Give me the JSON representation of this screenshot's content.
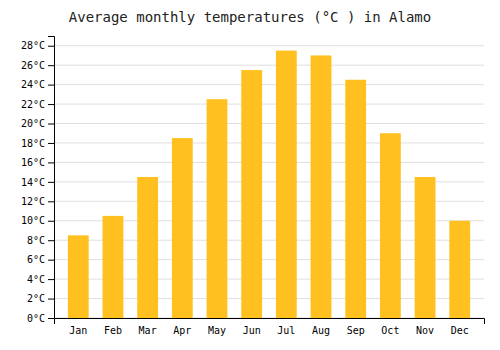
{
  "chart_data": {
    "type": "bar",
    "title": "Average monthly temperatures (°C ) in Alamo",
    "categories": [
      "Jan",
      "Feb",
      "Mar",
      "Apr",
      "May",
      "Jun",
      "Jul",
      "Aug",
      "Sep",
      "Oct",
      "Nov",
      "Dec"
    ],
    "values": [
      8.5,
      10.5,
      14.5,
      18.5,
      22.5,
      25.5,
      27.5,
      27.0,
      24.5,
      19.0,
      14.5,
      10.0
    ],
    "color": "#FFC020",
    "ylim": [
      0,
      29
    ],
    "yticks": [
      {
        "value": 0,
        "label": "0°C"
      },
      {
        "value": 2,
        "label": "2°C"
      },
      {
        "value": 4,
        "label": "4°C"
      },
      {
        "value": 6,
        "label": "6°C"
      },
      {
        "value": 8,
        "label": "8°C"
      },
      {
        "value": 10,
        "label": "10°C"
      },
      {
        "value": 12,
        "label": "12°C"
      },
      {
        "value": 14,
        "label": "14°C"
      },
      {
        "value": 16,
        "label": "16°C"
      },
      {
        "value": 18,
        "label": "18°C"
      },
      {
        "value": 20,
        "label": "20°C"
      },
      {
        "value": 22,
        "label": "22°C"
      },
      {
        "value": 24,
        "label": "24°C"
      },
      {
        "value": 26,
        "label": "26°C"
      },
      {
        "value": 28,
        "label": "28°C"
      }
    ],
    "grid": true
  }
}
